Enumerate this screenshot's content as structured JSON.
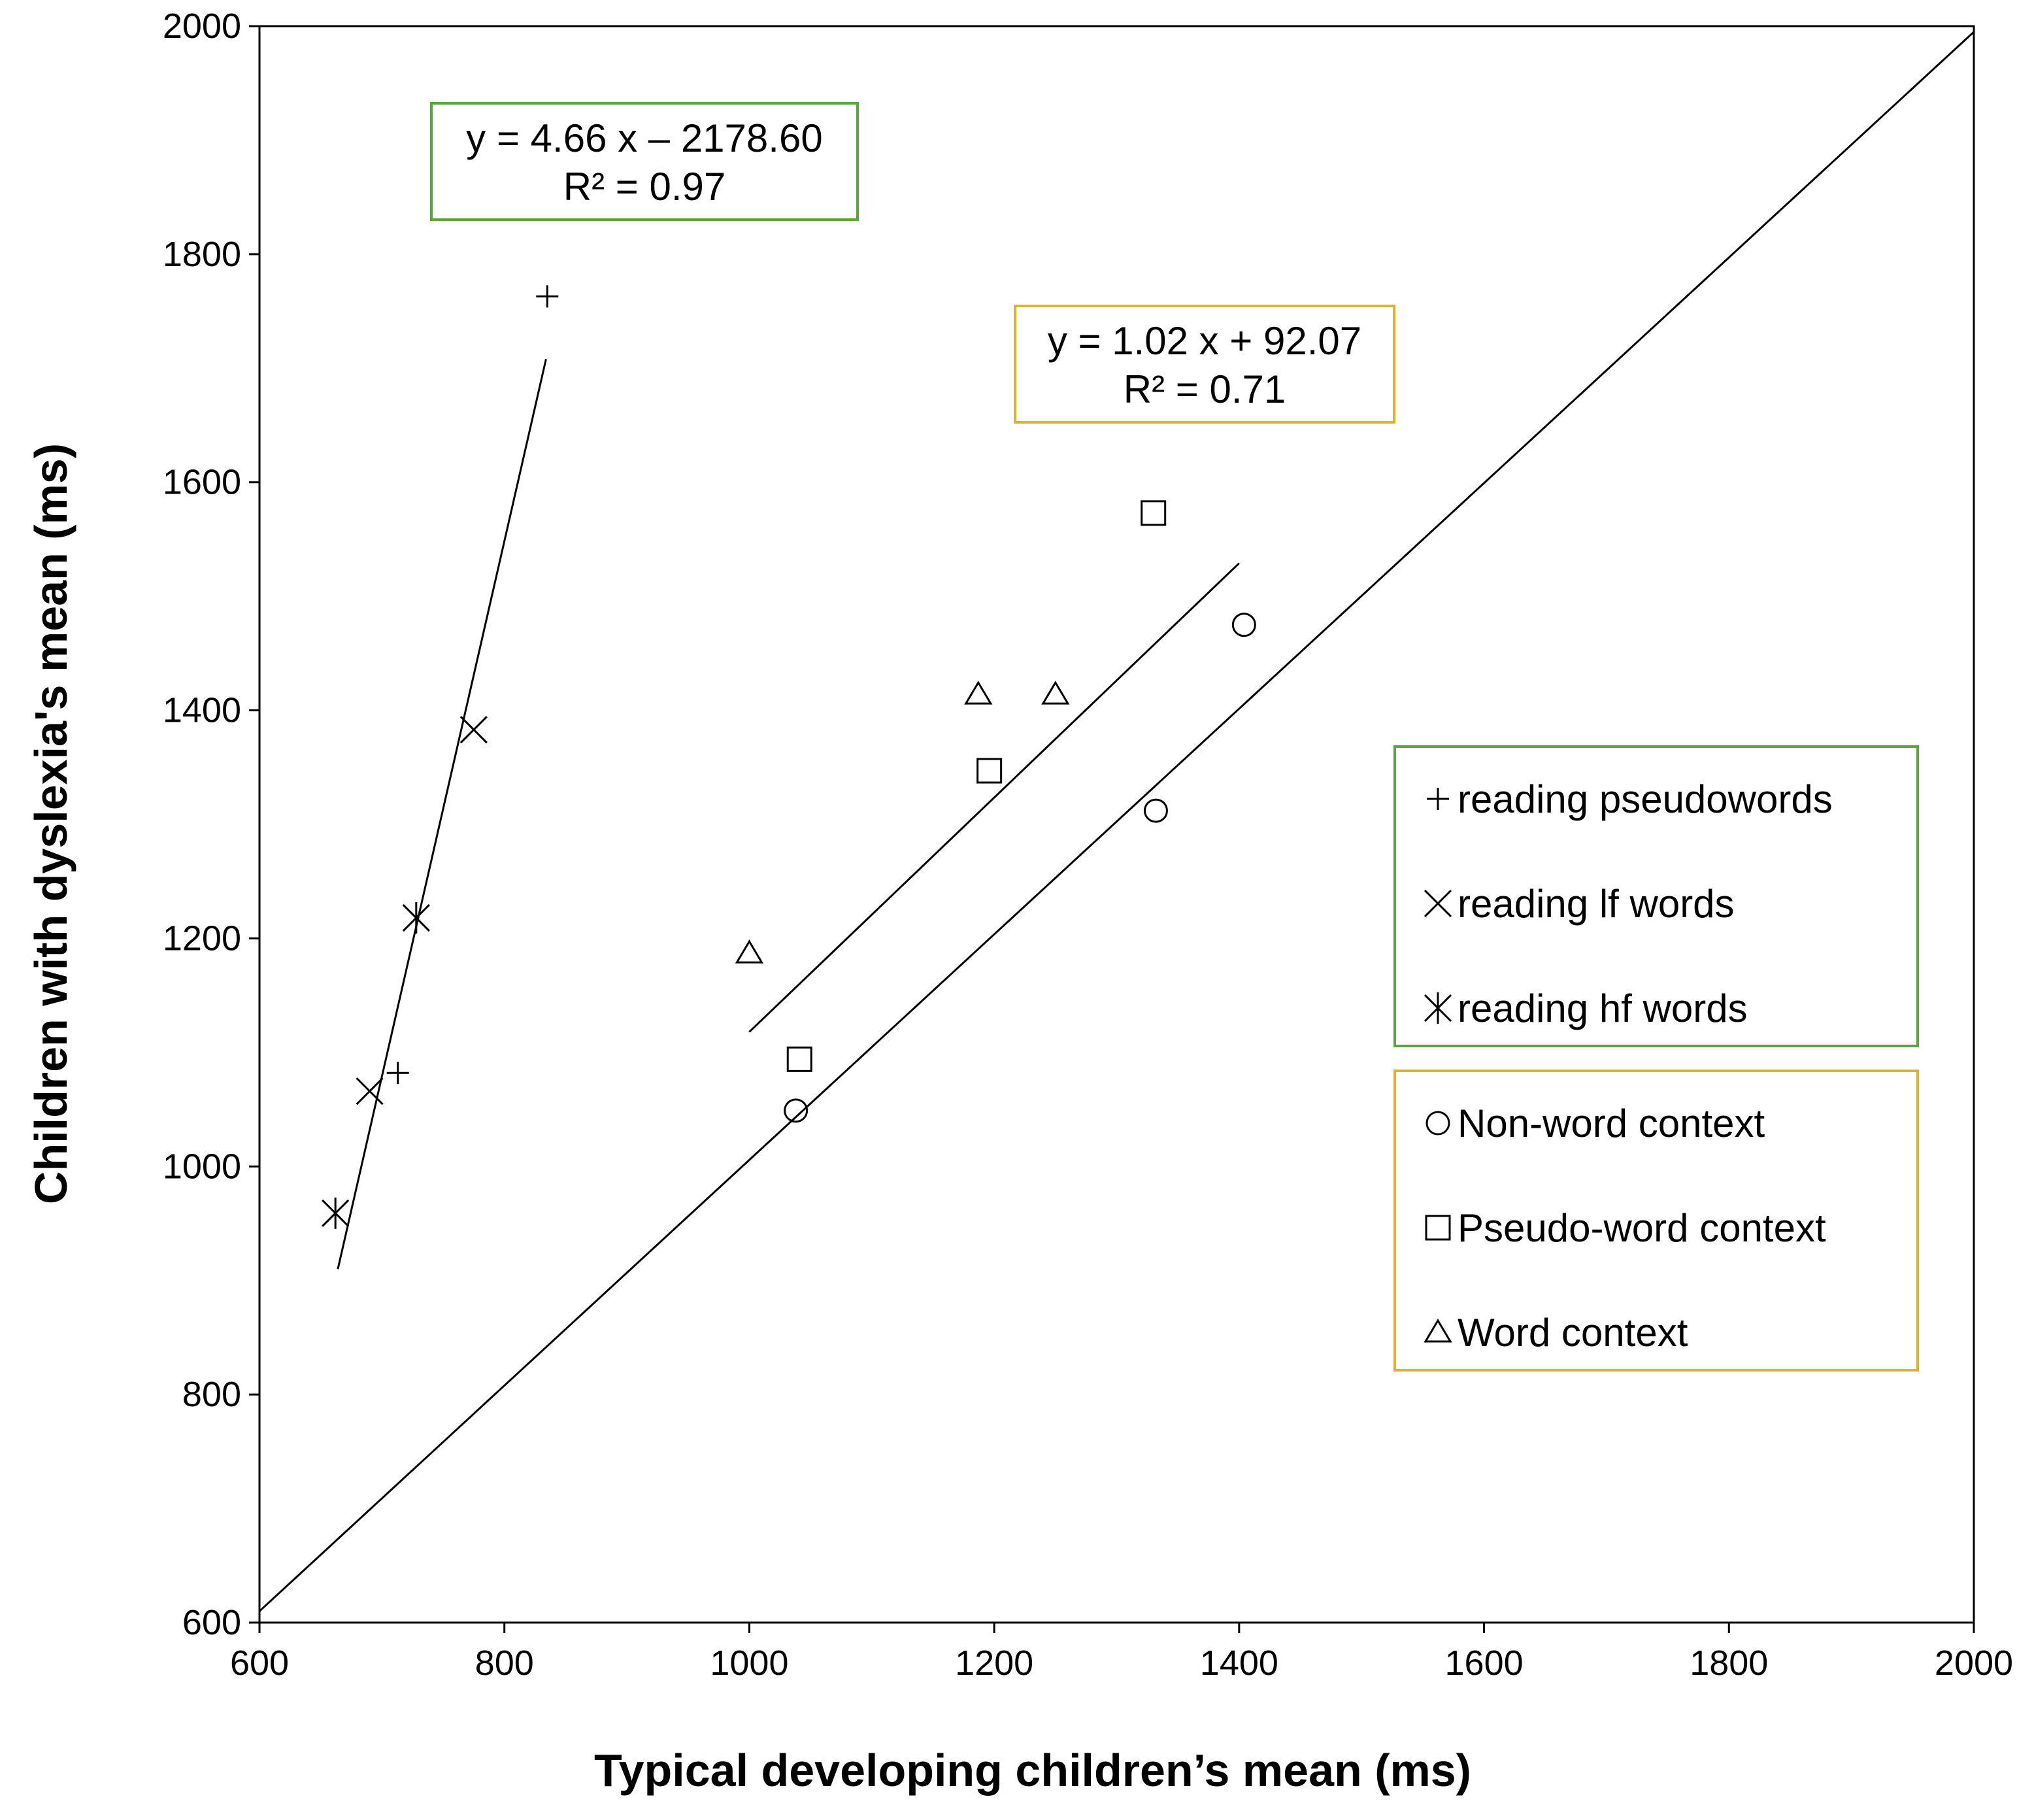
{
  "chart_data": {
    "type": "scatter",
    "xlabel": "Typical developing children’s mean (ms)",
    "ylabel": "Children with dyslexia's mean (ms)",
    "xlim": [
      600,
      2000
    ],
    "ylim": [
      600,
      2000
    ],
    "xticks": [
      600,
      800,
      1000,
      1200,
      1400,
      1600,
      1800,
      2000
    ],
    "yticks": [
      600,
      800,
      1000,
      1200,
      1400,
      1600,
      1800,
      2000
    ],
    "grid": false,
    "series": [
      {
        "name": "reading pseudowords",
        "marker": "plus",
        "group": "reading",
        "points": [
          [
            835,
            1763
          ],
          [
            713,
            1082
          ]
        ]
      },
      {
        "name": "reading lf words",
        "marker": "x",
        "group": "reading",
        "points": [
          [
            775,
            1383
          ],
          [
            690,
            1066
          ]
        ]
      },
      {
        "name": "reading hf words",
        "marker": "asterisk",
        "group": "reading",
        "points": [
          [
            728,
            1218
          ],
          [
            662,
            959
          ]
        ]
      },
      {
        "name": "Non-word context",
        "marker": "circle",
        "group": "context",
        "points": [
          [
            1404,
            1475
          ],
          [
            1332,
            1312
          ],
          [
            1038,
            1049
          ]
        ]
      },
      {
        "name": "Pseudo-word context",
        "marker": "square",
        "group": "context",
        "points": [
          [
            1330,
            1573
          ],
          [
            1196,
            1347
          ],
          [
            1041,
            1094
          ]
        ]
      },
      {
        "name": "Word context",
        "marker": "triangle",
        "group": "context",
        "points": [
          [
            1187,
            1414
          ],
          [
            1250,
            1414
          ],
          [
            1000,
            1187
          ]
        ]
      }
    ],
    "lines": [
      {
        "name": "identity",
        "from": [
          600,
          610
        ],
        "to": [
          2000,
          1995
        ]
      },
      {
        "name": "reading-fit",
        "from": [
          664,
          910
        ],
        "to": [
          834,
          1708
        ]
      },
      {
        "name": "context-fit",
        "from": [
          1000,
          1118
        ],
        "to": [
          1400,
          1529
        ]
      }
    ],
    "annotations": [
      {
        "name": "reading-equation",
        "group": "reading",
        "lines": [
          "y = 4.66 x – 2178.60",
          "R² = 0.97"
        ]
      },
      {
        "name": "context-equation",
        "group": "context",
        "lines": [
          "y = 1.02 x + 92.07",
          "R² = 0.71"
        ]
      }
    ],
    "legend": {
      "placement": "right",
      "groups": [
        {
          "group": "reading",
          "entries": [
            "reading pseudowords",
            "reading lf words",
            "reading hf words"
          ]
        },
        {
          "group": "context",
          "entries": [
            "Non-word context",
            "Pseudo-word context",
            "Word context"
          ]
        }
      ]
    }
  },
  "colors": {
    "reading": "#5fa244",
    "context": "#e0b12f",
    "ink": "#000000",
    "background": "#ffffff"
  }
}
